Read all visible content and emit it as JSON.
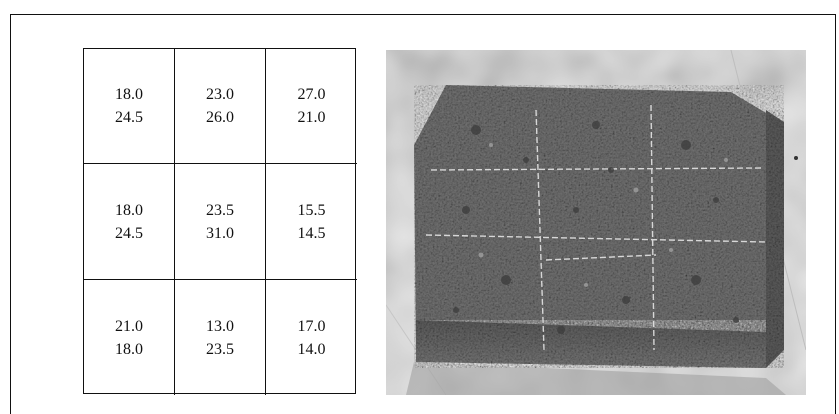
{
  "grid": {
    "rows": [
      [
        {
          "top": "18.0",
          "bottom": "24.5"
        },
        {
          "top": "23.0",
          "bottom": "26.0"
        },
        {
          "top": "27.0",
          "bottom": "21.0"
        }
      ],
      [
        {
          "top": "18.0",
          "bottom": "24.5"
        },
        {
          "top": "23.5",
          "bottom": "31.0"
        },
        {
          "top": "15.5",
          "bottom": "14.5"
        }
      ],
      [
        {
          "top": "21.0",
          "bottom": "18.0"
        },
        {
          "top": "13.0",
          "bottom": "23.5"
        },
        {
          "top": "17.0",
          "bottom": "14.0"
        }
      ]
    ]
  },
  "photo": {
    "subject": "concrete-block-specimen",
    "colors": {
      "background": "#dcdcdc",
      "block": "#6f6f6f",
      "grid_lines": "#e8e8e8"
    }
  }
}
